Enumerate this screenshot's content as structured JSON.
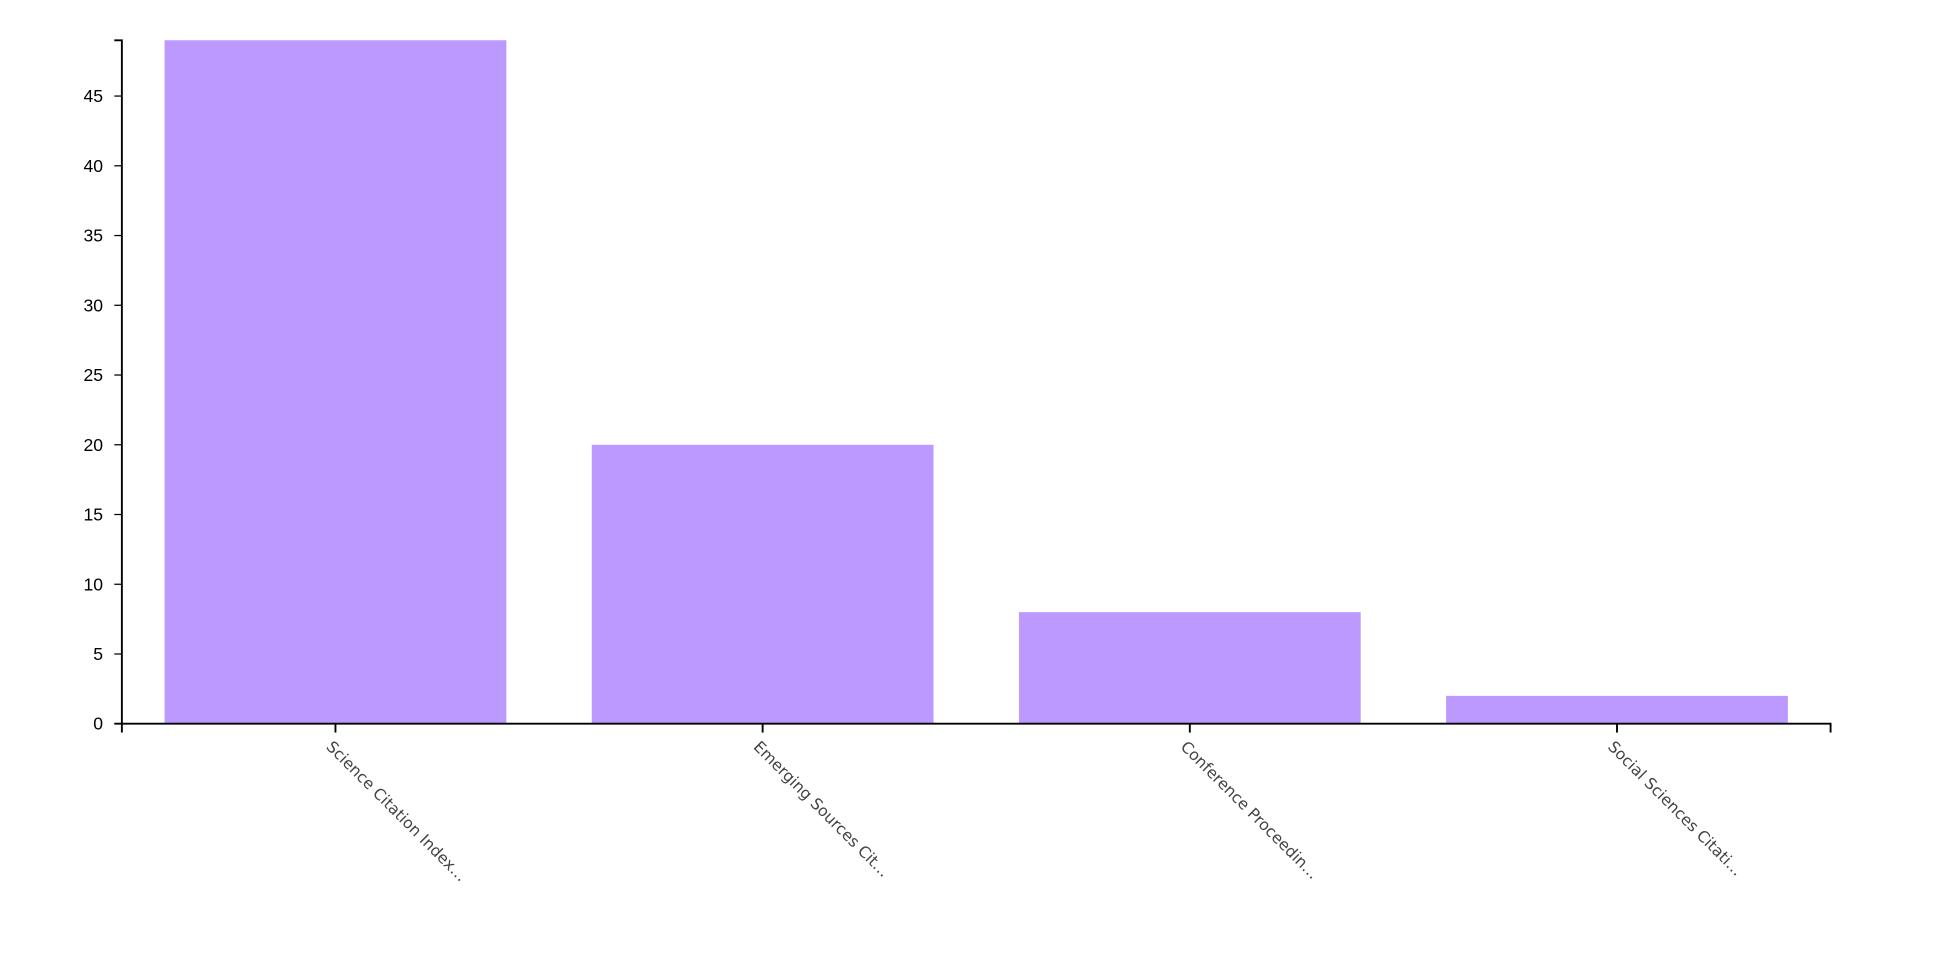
{
  "chart_data": {
    "type": "bar",
    "title": "",
    "xlabel": "",
    "ylabel": "",
    "categories": [
      "Science Citation Index…",
      "Emerging Sources Cit…",
      "Conference Proceedin…",
      "Social Sciences Citati…"
    ],
    "values": [
      49,
      20,
      8,
      2
    ],
    "ylim": [
      0,
      49
    ],
    "yticks": [
      0,
      5,
      10,
      15,
      20,
      25,
      30,
      35,
      40,
      45
    ],
    "grid": false,
    "legend": "none",
    "bar_color": "#bb99ff"
  }
}
